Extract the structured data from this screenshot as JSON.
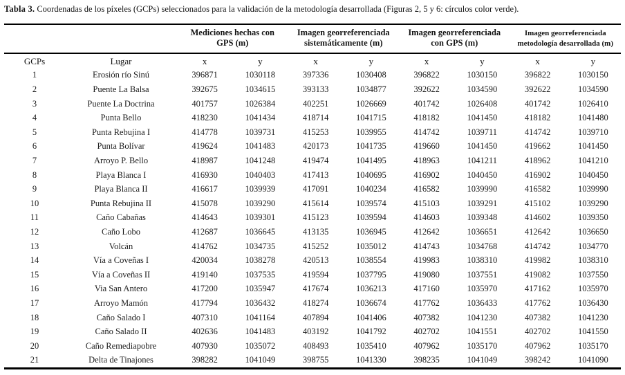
{
  "caption": {
    "label": "Tabla 3.",
    "text": " Coordenadas de los píxeles (GCPs) seleccionados para la validación de la metodología desarrollada (Figuras 2, 5 y 6: círculos color verde)."
  },
  "table": {
    "corner_headers": {
      "gcps": "GCPs",
      "lugar": "Lugar"
    },
    "sub_headers": {
      "x": "x",
      "y": "y"
    },
    "groups": [
      {
        "line1": "Mediciones hechas con",
        "line2": "GPS (m)"
      },
      {
        "line1": "Imagen georreferenciada",
        "line2": "sistemáticamente (m)"
      },
      {
        "line1": "Imagen georreferenciada",
        "line2": "con GPS (m)"
      },
      {
        "line1": "Imagen georreferenciada",
        "line2": "metodología desarrollada (m)"
      }
    ],
    "rows": [
      [
        "1",
        "Erosión río Sinú",
        "396871",
        "1030118",
        "397336",
        "1030408",
        "396822",
        "1030150",
        "396822",
        "1030150"
      ],
      [
        "2",
        "Puente La Balsa",
        "392675",
        "1034615",
        "393133",
        "1034877",
        "392622",
        "1034590",
        "392622",
        "1034590"
      ],
      [
        "3",
        "Puente La Doctrina",
        "401757",
        "1026384",
        "402251",
        "1026669",
        "401742",
        "1026408",
        "401742",
        "1026410"
      ],
      [
        "4",
        "Punta Bello",
        "418230",
        "1041434",
        "418714",
        "1041715",
        "418182",
        "1041450",
        "418182",
        "1041480"
      ],
      [
        "5",
        "Punta Rebujina I",
        "414778",
        "1039731",
        "415253",
        "1039955",
        "414742",
        "1039711",
        "414742",
        "1039710"
      ],
      [
        "6",
        "Punta Bolívar",
        "419624",
        "1041483",
        "420173",
        "1041735",
        "419660",
        "1041450",
        "419662",
        "1041450"
      ],
      [
        "7",
        "Arroyo P. Bello",
        "418987",
        "1041248",
        "419474",
        "1041495",
        "418963",
        "1041211",
        "418962",
        "1041210"
      ],
      [
        "8",
        "Playa Blanca I",
        "416930",
        "1040403",
        "417413",
        "1040695",
        "416902",
        "1040450",
        "416902",
        "1040450"
      ],
      [
        "9",
        "Playa Blanca II",
        "416617",
        "1039939",
        "417091",
        "1040234",
        "416582",
        "1039990",
        "416582",
        "1039990"
      ],
      [
        "10",
        "Punta Rebujina II",
        "415078",
        "1039290",
        "415614",
        "1039574",
        "415103",
        "1039291",
        "415102",
        "1039290"
      ],
      [
        "11",
        "Caño Cabañas",
        "414643",
        "1039301",
        "415123",
        "1039594",
        "414603",
        "1039348",
        "414602",
        "1039350"
      ],
      [
        "12",
        "Caño Lobo",
        "412687",
        "1036645",
        "413135",
        "1036945",
        "412642",
        "1036651",
        "412642",
        "1036650"
      ],
      [
        "13",
        "Volcán",
        "414762",
        "1034735",
        "415252",
        "1035012",
        "414743",
        "1034768",
        "414742",
        "1034770"
      ],
      [
        "14",
        "Vía a Coveñas I",
        "420034",
        "1038278",
        "420513",
        "1038554",
        "419983",
        "1038310",
        "419982",
        "1038310"
      ],
      [
        "15",
        "Vía a Coveñas II",
        "419140",
        "1037535",
        "419594",
        "1037795",
        "419080",
        "1037551",
        "419082",
        "1037550"
      ],
      [
        "16",
        "Via San Antero",
        "417200",
        "1035947",
        "417674",
        "1036213",
        "417160",
        "1035970",
        "417162",
        "1035970"
      ],
      [
        "17",
        "Arroyo Mamón",
        "417794",
        "1036432",
        "418274",
        "1036674",
        "417762",
        "1036433",
        "417762",
        "1036430"
      ],
      [
        "18",
        "Caño Salado I",
        "407310",
        "1041164",
        "407894",
        "1041406",
        "407382",
        "1041230",
        "407382",
        "1041230"
      ],
      [
        "19",
        "Caño Salado II",
        "402636",
        "1041483",
        "403192",
        "1041792",
        "402702",
        "1041551",
        "402702",
        "1041550"
      ],
      [
        "20",
        "Caño Remediapobre",
        "407930",
        "1035072",
        "408493",
        "1035410",
        "407962",
        "1035170",
        "407962",
        "1035170"
      ],
      [
        "21",
        "Delta de Tinajones",
        "398282",
        "1041049",
        "398755",
        "1041330",
        "398235",
        "1041049",
        "398242",
        "1041090"
      ]
    ]
  },
  "colors": {
    "text": "#141414",
    "rule": "#000000",
    "background": "#ffffff"
  }
}
